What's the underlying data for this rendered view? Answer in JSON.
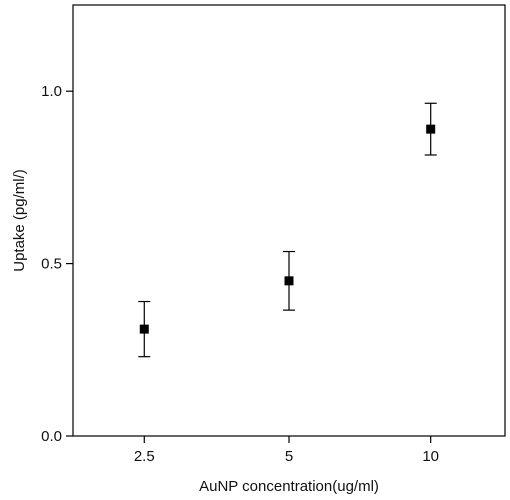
{
  "chart_data": {
    "type": "scatter",
    "title": "",
    "xlabel": "AuNP concentration(ug/ml)",
    "ylabel": "Uptake (pg/ml/)",
    "categories": [
      "2.5",
      "5",
      "10"
    ],
    "series": [
      {
        "values": [
          0.31,
          0.45,
          0.89
        ],
        "error": [
          0.08,
          0.085,
          0.075
        ]
      }
    ],
    "ylim": [
      0,
      1.25
    ],
    "yticks": [
      0.0,
      0.5,
      1.0
    ],
    "ytick_labels": [
      "0.0",
      "0.5",
      "1.0"
    ],
    "grid": false,
    "legend": "none",
    "marker": "square",
    "color": "#000000"
  }
}
